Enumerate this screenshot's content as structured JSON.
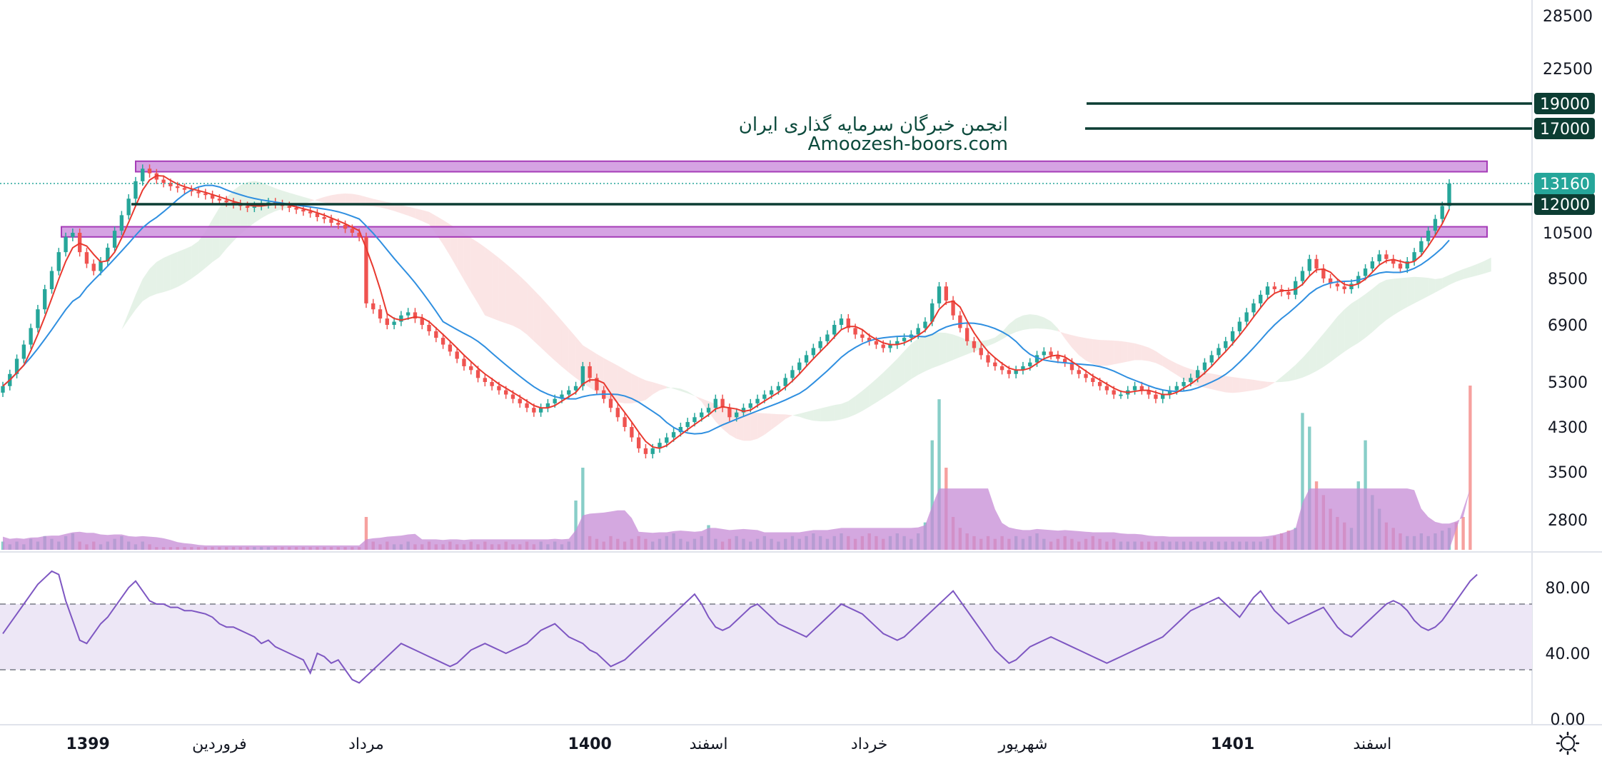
{
  "watermark": {
    "line1": "انجمن خبرگان سرمایه گذاری ایران",
    "line2": "Amoozesh-boors.com"
  },
  "colors": {
    "up": "#26a69a",
    "down": "#ef5350",
    "ma_fast": "#e8392f",
    "ma_slow": "#2f8fe0",
    "cloud_bull": "#cfe8d3",
    "cloud_bear": "#f7cfcf",
    "zone_fill": "#d19ae0",
    "zone_stroke": "#9c27b0",
    "level_line": "#0c3d33",
    "level_badge": "#0c3d33",
    "last_badge": "#26a69a",
    "rsi_line": "#7e57c2",
    "rsi_band": "#ede7f6",
    "volume_ma_fill": "#c58bd6"
  },
  "price_axis": {
    "ticks": [
      "28500",
      "22500",
      "19000",
      "17000",
      "13160",
      "12000",
      "10500",
      "8500",
      "6900",
      "5300",
      "4300",
      "3500",
      "2800"
    ]
  },
  "level_badges": [
    {
      "label": "19000",
      "value": 19000
    },
    {
      "label": "17000",
      "value": 17000
    },
    {
      "label": "12000",
      "value": 12000
    }
  ],
  "last_price": {
    "label": "13160",
    "value": 13160
  },
  "zones": [
    {
      "from": 13900,
      "to": 14600
    },
    {
      "from": 10300,
      "to": 10800
    }
  ],
  "rsi_axis": {
    "ticks": [
      "80.00",
      "40.00",
      "0.00"
    ],
    "upper": 70,
    "lower": 30
  },
  "time_axis": {
    "labels": [
      {
        "text": "1399",
        "bold": true,
        "index": 4
      },
      {
        "text": "فروردین",
        "bold": false,
        "index": 31
      },
      {
        "text": "مرداد",
        "bold": false,
        "index": 52
      },
      {
        "text": "1400",
        "bold": true,
        "index": 84
      },
      {
        "text": "اسفند",
        "bold": false,
        "index": 101
      },
      {
        "text": "خرداد",
        "bold": false,
        "index": 124
      },
      {
        "text": "شهریور",
        "bold": false,
        "index": 146
      },
      {
        "text": "1401",
        "bold": true,
        "index": 176
      },
      {
        "text": "اسفند",
        "bold": false,
        "index": 196
      }
    ]
  },
  "settings_icon": "gear-icon",
  "chart_data": {
    "type": "candlestick",
    "ylim": [
      2500,
      30000
    ],
    "y_scale": "log",
    "series_closes": [
      5200,
      5500,
      5900,
      6300,
      6800,
      7400,
      8100,
      8800,
      9600,
      10300,
      10500,
      9600,
      9100,
      8800,
      9200,
      9800,
      10600,
      11400,
      12300,
      13300,
      14100,
      13800,
      13400,
      13200,
      13000,
      12900,
      12800,
      12700,
      12600,
      12500,
      12300,
      12200,
      12100,
      12000,
      11900,
      11800,
      11900,
      12000,
      12100,
      12000,
      11900,
      11800,
      11700,
      11600,
      11500,
      11300,
      11200,
      11000,
      10900,
      10700,
      10500,
      10300,
      7600,
      7400,
      7100,
      6900,
      7000,
      7200,
      7300,
      7100,
      6900,
      6700,
      6500,
      6300,
      6100,
      5900,
      5700,
      5600,
      5400,
      5300,
      5200,
      5100,
      5000,
      4900,
      4800,
      4700,
      4600,
      4700,
      4800,
      4900,
      5000,
      5100,
      5200,
      5700,
      5400,
      5100,
      4900,
      4700,
      4500,
      4300,
      4100,
      3900,
      3800,
      3900,
      4000,
      4100,
      4200,
      4300,
      4400,
      4500,
      4600,
      4700,
      4900,
      4700,
      4500,
      4600,
      4700,
      4800,
      4900,
      5000,
      5100,
      5200,
      5400,
      5600,
      5800,
      6000,
      6200,
      6400,
      6600,
      6900,
      7100,
      6800,
      6600,
      6500,
      6400,
      6300,
      6200,
      6300,
      6400,
      6500,
      6600,
      6800,
      7000,
      7600,
      8200,
      7700,
      7200,
      6800,
      6400,
      6200,
      6000,
      5800,
      5700,
      5600,
      5500,
      5600,
      5700,
      5800,
      6000,
      6100,
      6000,
      5900,
      5800,
      5600,
      5500,
      5400,
      5300,
      5200,
      5100,
      5000,
      5000,
      5100,
      5200,
      5100,
      5000,
      4900,
      5000,
      5100,
      5200,
      5300,
      5400,
      5600,
      5800,
      6000,
      6200,
      6400,
      6700,
      7000,
      7300,
      7600,
      7900,
      8200,
      8100,
      8000,
      7900,
      8400,
      8800,
      9300,
      8900,
      8500,
      8300,
      8200,
      8100,
      8300,
      8600,
      8900,
      9200,
      9500,
      9300,
      9100,
      8900,
      9200,
      9600,
      10100,
      10600,
      11200,
      11900,
      13160
    ],
    "volume": [
      3,
      2,
      3,
      2,
      4,
      3,
      5,
      4,
      3,
      5,
      6,
      3,
      2,
      3,
      2,
      3,
      4,
      5,
      3,
      2,
      3,
      2,
      1,
      1,
      1,
      1,
      1,
      1,
      1,
      1,
      1,
      1,
      1,
      1,
      1,
      1,
      1,
      1,
      1,
      1,
      1,
      1,
      1,
      1,
      1,
      1,
      1,
      1,
      1,
      1,
      1,
      1,
      12,
      3,
      2,
      3,
      2,
      2,
      3,
      2,
      2,
      3,
      2,
      2,
      3,
      2,
      2,
      3,
      2,
      3,
      2,
      2,
      3,
      2,
      2,
      3,
      2,
      3,
      2,
      3,
      2,
      3,
      18,
      30,
      5,
      4,
      3,
      5,
      4,
      3,
      4,
      5,
      4,
      3,
      4,
      5,
      6,
      4,
      3,
      4,
      5,
      9,
      4,
      3,
      4,
      5,
      4,
      3,
      4,
      5,
      4,
      3,
      4,
      5,
      4,
      5,
      6,
      5,
      4,
      5,
      6,
      5,
      4,
      5,
      6,
      5,
      4,
      5,
      6,
      5,
      4,
      6,
      10,
      40,
      55,
      30,
      12,
      8,
      6,
      5,
      4,
      5,
      4,
      5,
      4,
      5,
      4,
      5,
      6,
      4,
      3,
      4,
      5,
      4,
      3,
      4,
      5,
      4,
      3,
      4,
      3,
      3,
      3,
      3,
      3,
      3,
      3,
      3,
      3,
      3,
      3,
      3,
      3,
      3,
      3,
      3,
      3,
      3,
      3,
      3,
      3,
      4,
      5,
      6,
      7,
      8,
      50,
      45,
      25,
      20,
      15,
      12,
      10,
      8,
      25,
      40,
      20,
      15,
      10,
      8,
      6,
      5,
      5,
      6,
      5,
      6,
      7,
      8,
      10,
      12,
      60
    ],
    "rsi": [
      52,
      58,
      64,
      70,
      76,
      82,
      86,
      90,
      88,
      72,
      60,
      48,
      46,
      52,
      58,
      62,
      68,
      74,
      80,
      84,
      78,
      72,
      70,
      70,
      68,
      68,
      66,
      66,
      65,
      64,
      62,
      58,
      56,
      56,
      54,
      52,
      50,
      46,
      48,
      44,
      42,
      40,
      38,
      36,
      28,
      40,
      38,
      34,
      36,
      30,
      24,
      22,
      26,
      30,
      34,
      38,
      42,
      46,
      44,
      42,
      40,
      38,
      36,
      34,
      32,
      34,
      38,
      42,
      44,
      46,
      44,
      42,
      40,
      42,
      44,
      46,
      50,
      54,
      56,
      58,
      54,
      50,
      48,
      46,
      42,
      40,
      36,
      32,
      34,
      36,
      40,
      44,
      48,
      52,
      56,
      60,
      64,
      68,
      72,
      76,
      70,
      62,
      56,
      54,
      56,
      60,
      64,
      68,
      70,
      66,
      62,
      58,
      56,
      54,
      52,
      50,
      54,
      58,
      62,
      66,
      70,
      68,
      66,
      64,
      60,
      56,
      52,
      50,
      48,
      50,
      54,
      58,
      62,
      66,
      70,
      74,
      78,
      72,
      66,
      60,
      54,
      48,
      42,
      38,
      34,
      36,
      40,
      44,
      46,
      48,
      50,
      48,
      46,
      44,
      42,
      40,
      38,
      36,
      34,
      36,
      38,
      40,
      42,
      44,
      46,
      48,
      50,
      54,
      58,
      62,
      66,
      68,
      70,
      72,
      74,
      70,
      66,
      62,
      68,
      74,
      78,
      72,
      66,
      62,
      58,
      60,
      62,
      64,
      66,
      68,
      62,
      56,
      52,
      50,
      54,
      58,
      62,
      66,
      70,
      72,
      70,
      66,
      60,
      56,
      54,
      56,
      60,
      66,
      72,
      78,
      84,
      88
    ]
  }
}
